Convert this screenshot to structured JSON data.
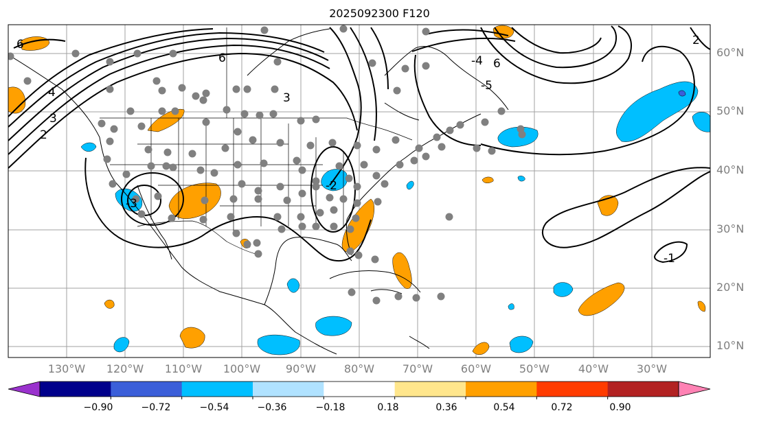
{
  "title": "2025092300 F120",
  "colors": {
    "positive_anomaly": "#ffa000",
    "negative_anomaly": "#00bfff",
    "strong_negative": "#3b5fd9",
    "contour": "#000000",
    "station_dot": "#808080",
    "grid": "#a0a0a0"
  },
  "map": {
    "lat_labels": [
      {
        "id": "60n",
        "text": "60°N"
      },
      {
        "id": "50n",
        "text": "50°N"
      },
      {
        "id": "40n",
        "text": "40°N"
      },
      {
        "id": "30n",
        "text": "30°N"
      },
      {
        "id": "20n",
        "text": "20°N"
      },
      {
        "id": "10n",
        "text": "10°N"
      }
    ],
    "lon_labels": [
      {
        "id": "130w",
        "text": "130°W"
      },
      {
        "id": "120w",
        "text": "120°W"
      },
      {
        "id": "110w",
        "text": "110°W"
      },
      {
        "id": "100w",
        "text": "100°W"
      },
      {
        "id": "90w",
        "text": "90°W"
      },
      {
        "id": "80w",
        "text": "80°W"
      },
      {
        "id": "70w",
        "text": "70°W"
      },
      {
        "id": "60w",
        "text": "60°W"
      },
      {
        "id": "50w",
        "text": "50°W"
      },
      {
        "id": "40w",
        "text": "40°W"
      },
      {
        "id": "30w",
        "text": "30°W"
      }
    ],
    "contour_labels": [
      "6",
      "6",
      "3",
      "4",
      "2",
      "-2",
      "-3",
      "3",
      "-4",
      "-5",
      "6",
      "2",
      "-1"
    ]
  },
  "colorbar": {
    "colors": [
      "#9a32cd",
      "#00008b",
      "#3b5fd9",
      "#00bfff",
      "#b0e2ff",
      "#ffffff",
      "#ffe68c",
      "#ffa000",
      "#ff3c00",
      "#b22222",
      "#ff82b4"
    ],
    "labels": [
      "−0.90",
      "−0.72",
      "−0.54",
      "−0.36",
      "−0.18",
      "0.18",
      "0.36",
      "0.54",
      "0.72",
      "0.90"
    ]
  }
}
